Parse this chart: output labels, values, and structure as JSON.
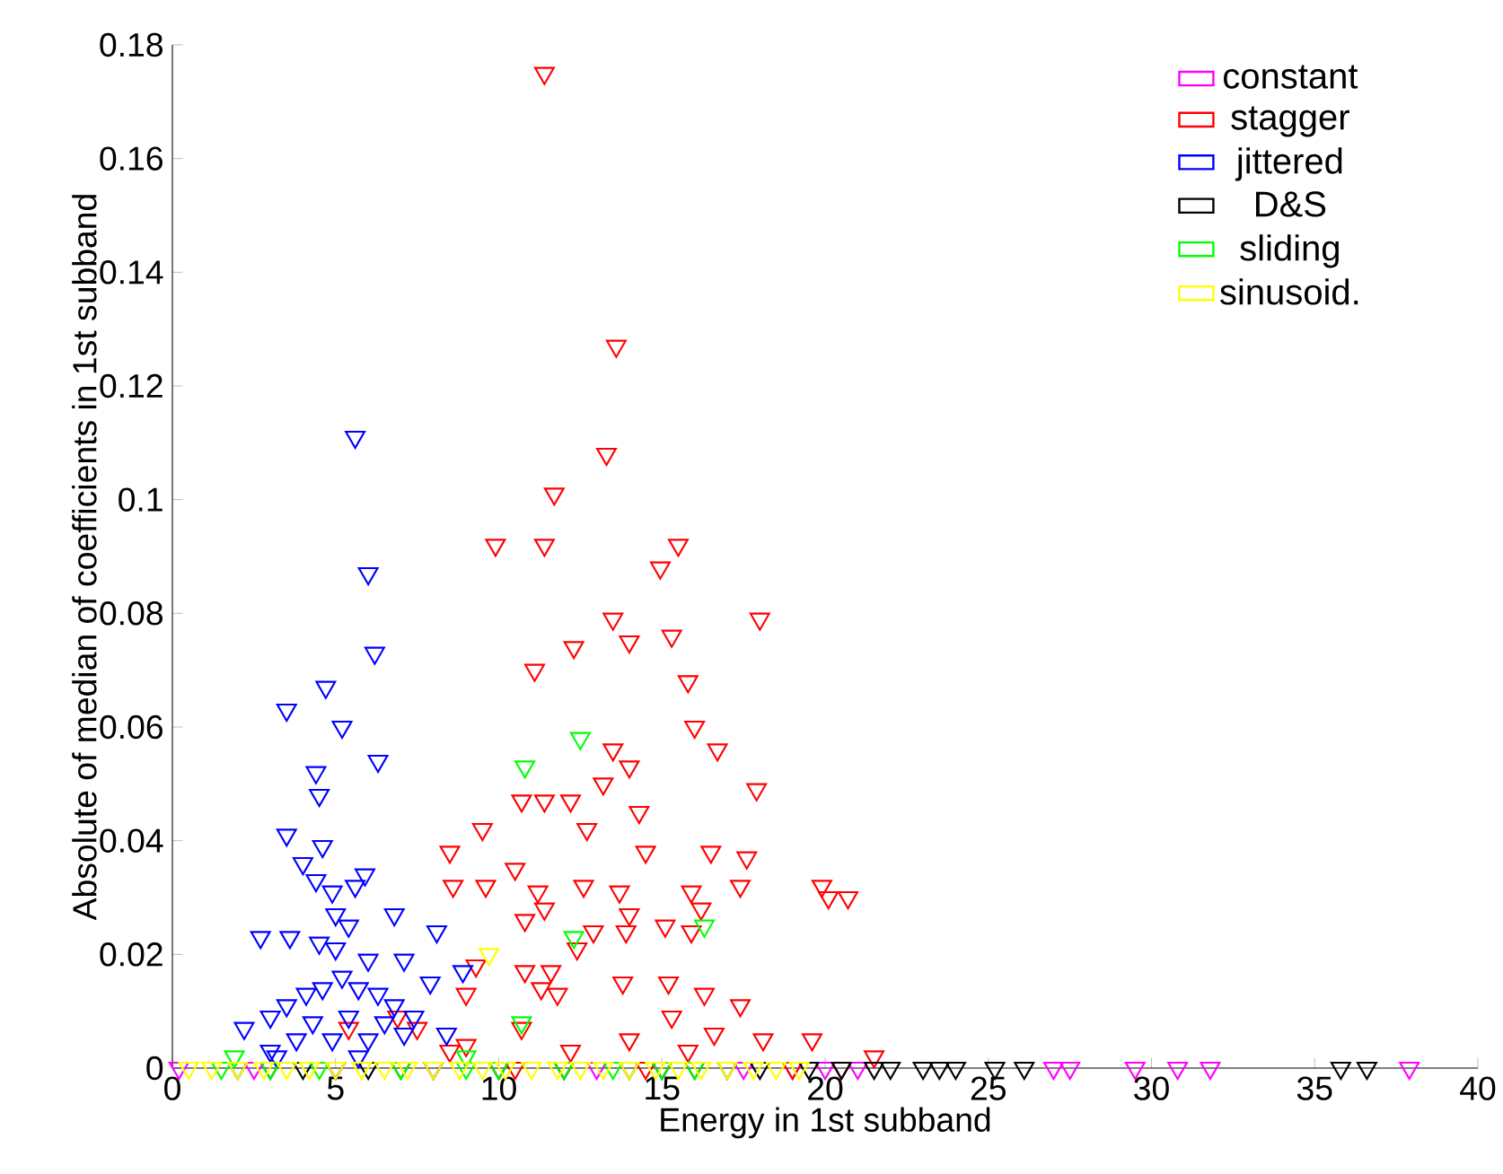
{
  "chart_data": {
    "type": "scatter",
    "xlabel": "Energy in 1st subband",
    "ylabel": "Absolute of median of coefficients in 1st subband",
    "xlim": [
      0,
      40
    ],
    "ylim": [
      0,
      0.18
    ],
    "xticks": [
      0,
      5,
      10,
      15,
      20,
      25,
      30,
      35,
      40
    ],
    "yticks": [
      0,
      0.02,
      0.04,
      0.06,
      0.08,
      0.1,
      0.12,
      0.14,
      0.16,
      0.18
    ],
    "grid": false,
    "legend": "top right",
    "marker": "triangle",
    "series": [
      {
        "name": "constant",
        "color": "#ff00ff",
        "x": [
          0.2,
          2.5,
          5,
          8,
          10,
          13,
          15,
          17.5,
          19,
          20,
          21,
          27.0,
          27.5,
          29.5,
          30.8,
          31.8,
          37.9
        ],
        "values": [
          0,
          0,
          0,
          0,
          0,
          0,
          0,
          0,
          0,
          0,
          0,
          0,
          0,
          0,
          0,
          0,
          0
        ]
      },
      {
        "name": "stagger",
        "color": "#ff0000",
        "x": [
          11.4,
          13.6,
          13.3,
          11.7,
          9.9,
          11.4,
          15.5,
          14.95,
          13.5,
          18.0,
          12.3,
          11.1,
          15.3,
          14.0,
          15.8,
          16.0,
          16.7,
          13.5,
          14.0,
          13.2,
          14.3,
          17.9,
          10.7,
          11.4,
          12.2,
          12.7,
          9.5,
          8.5,
          14.5,
          16.5,
          17.6,
          10.5,
          8.6,
          9.6,
          11.2,
          12.6,
          13.7,
          15.9,
          17.4,
          19.9,
          20.7,
          20.1,
          11.4,
          10.8,
          14.0,
          16.2,
          15.1,
          15.9,
          13.9,
          12.4,
          12.9,
          9.3,
          11.6,
          10.8,
          13.8,
          15.2,
          9.0,
          11.3,
          11.8,
          16.3,
          17.4,
          10.7,
          15.3,
          14.0,
          16.6,
          18.1,
          19.6,
          21.5,
          5.4,
          7.5,
          6.9,
          9.0,
          12.2,
          8.5,
          15.8,
          10.5,
          12.0,
          14.5,
          19.0,
          20.5
        ],
        "values": [
          0.175,
          0.127,
          0.108,
          0.101,
          0.092,
          0.092,
          0.092,
          0.088,
          0.079,
          0.079,
          0.074,
          0.07,
          0.076,
          0.075,
          0.068,
          0.06,
          0.056,
          0.056,
          0.053,
          0.05,
          0.045,
          0.049,
          0.047,
          0.047,
          0.047,
          0.042,
          0.042,
          0.038,
          0.038,
          0.038,
          0.037,
          0.035,
          0.032,
          0.032,
          0.031,
          0.032,
          0.031,
          0.031,
          0.032,
          0.032,
          0.03,
          0.03,
          0.028,
          0.026,
          0.027,
          0.028,
          0.025,
          0.024,
          0.024,
          0.021,
          0.024,
          0.018,
          0.017,
          0.017,
          0.015,
          0.015,
          0.013,
          0.014,
          0.013,
          0.013,
          0.011,
          0.007,
          0.009,
          0.005,
          0.006,
          0.005,
          0.005,
          0.002,
          0.007,
          0.007,
          0.009,
          0.004,
          0.003,
          0.003,
          0.003,
          0,
          0,
          0,
          0,
          0
        ]
      },
      {
        "name": "jittered",
        "color": "#0000ff",
        "x": [
          5.6,
          6.0,
          6.2,
          4.7,
          3.5,
          5.2,
          4.4,
          4.5,
          6.3,
          3.5,
          4.0,
          4.4,
          5.9,
          5.6,
          2.7,
          3.6,
          4.5,
          5.0,
          6.8,
          8.1,
          7.1,
          6.0,
          8.9,
          2.2,
          3.0,
          3.5,
          4.1,
          4.6,
          5.2,
          5.7,
          6.3,
          6.8,
          7.4,
          4.3,
          5.4,
          6.5,
          4.9,
          6.0,
          3.8,
          3.0,
          7.1,
          7.9,
          5.0,
          5.4,
          4.9,
          4.6,
          8.4,
          3.2,
          5.7
        ],
        "values": [
          0.111,
          0.087,
          0.073,
          0.067,
          0.063,
          0.06,
          0.052,
          0.048,
          0.054,
          0.041,
          0.036,
          0.033,
          0.034,
          0.032,
          0.023,
          0.023,
          0.022,
          0.021,
          0.027,
          0.024,
          0.019,
          0.019,
          0.017,
          0.007,
          0.009,
          0.011,
          0.013,
          0.014,
          0.016,
          0.014,
          0.013,
          0.011,
          0.009,
          0.008,
          0.009,
          0.008,
          0.005,
          0.005,
          0.005,
          0.003,
          0.006,
          0.015,
          0.027,
          0.025,
          0.031,
          0.039,
          0.006,
          0.002,
          0.002
        ]
      },
      {
        "name": "D&S",
        "color": "#000000",
        "x": [
          2,
          3,
          4,
          5,
          6,
          7,
          8,
          10,
          12,
          14,
          15,
          16,
          17,
          18,
          19.5,
          20.5,
          21.5,
          22,
          23,
          23.5,
          24,
          25.2,
          26.1,
          35.8,
          36.6
        ],
        "values": [
          0,
          0,
          0,
          0,
          0,
          0,
          0,
          0,
          0,
          0,
          0,
          0,
          0,
          0,
          0,
          0,
          0,
          0,
          0,
          0,
          0,
          0,
          0,
          0,
          0
        ]
      },
      {
        "name": "sliding",
        "color": "#00ff00",
        "x": [
          10.8,
          12.5,
          12.3,
          16.3,
          10.7,
          1.9,
          9.0,
          1.5,
          3,
          4.5,
          7,
          9,
          10,
          12,
          13.5,
          15,
          16
        ],
        "values": [
          0.053,
          0.058,
          0.023,
          0.025,
          0.008,
          0.002,
          0.002,
          0,
          0,
          0,
          0,
          0,
          0,
          0,
          0,
          0,
          0
        ]
      },
      {
        "name": "sinusoid.",
        "color": "#ffff00",
        "x": [
          9.7,
          0.5,
          1.2,
          2,
          2.8,
          3.5,
          4.2,
          5,
          5.8,
          6.5,
          7.2,
          8,
          8.8,
          9.5,
          10.2,
          11,
          11.8,
          12.5,
          13.2,
          14,
          14.8,
          15.5,
          16.2,
          17,
          17.8,
          18.5,
          19.2
        ],
        "values": [
          0.02,
          0,
          0,
          0,
          0,
          0,
          0,
          0,
          0,
          0,
          0,
          0,
          0,
          0,
          0,
          0,
          0,
          0,
          0,
          0,
          0,
          0,
          0,
          0,
          0,
          0,
          0
        ]
      }
    ]
  }
}
